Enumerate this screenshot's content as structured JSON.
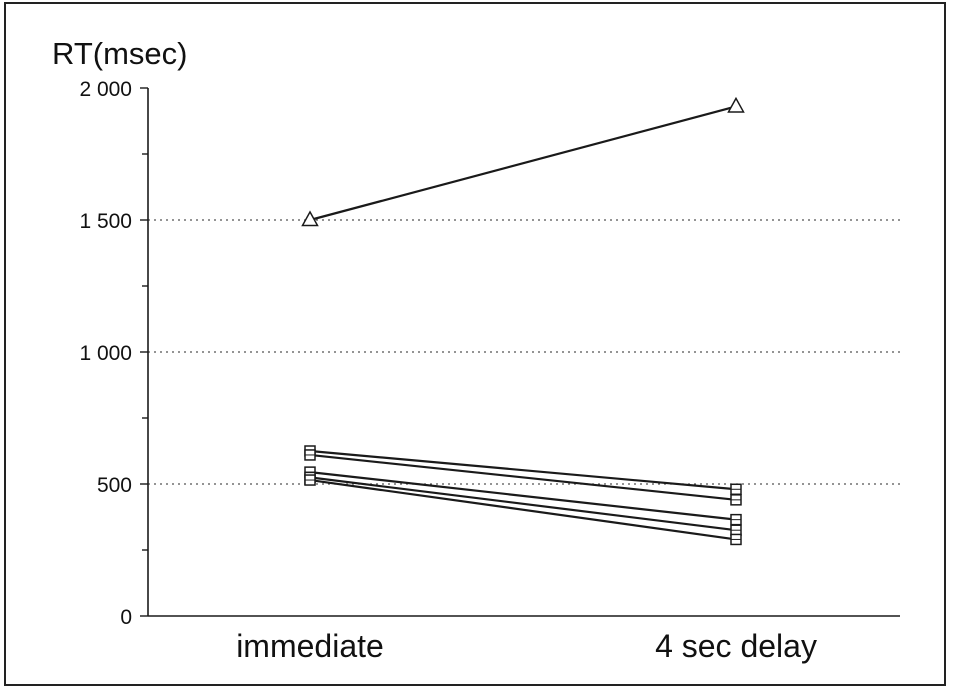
{
  "chart_data": {
    "type": "line",
    "ylabel": "RT(msec)",
    "xlabel": "",
    "categories": [
      "immediate",
      "4 sec delay"
    ],
    "ylim": [
      0,
      2000
    ],
    "yticks": [
      {
        "value": 0,
        "label": "0"
      },
      {
        "value": 500,
        "label": "500"
      },
      {
        "value": 1000,
        "label": "1 000"
      },
      {
        "value": 1500,
        "label": "1 500"
      },
      {
        "value": 2000,
        "label": "2 000"
      }
    ],
    "minor_tick_step": 250,
    "grid": "dotted horizontal at 500, 1000, 1500",
    "series": [
      {
        "marker": "triangle",
        "values": [
          1500,
          1930
        ]
      },
      {
        "marker": "square",
        "values": [
          625,
          480
        ]
      },
      {
        "marker": "square",
        "values": [
          610,
          440
        ]
      },
      {
        "marker": "square",
        "values": [
          545,
          365
        ]
      },
      {
        "marker": "square",
        "values": [
          525,
          325
        ]
      },
      {
        "marker": "square",
        "values": [
          515,
          290
        ]
      }
    ],
    "colors": {
      "line": "#1a1a1a",
      "grid": "#555555",
      "background": "#ffffff"
    }
  }
}
